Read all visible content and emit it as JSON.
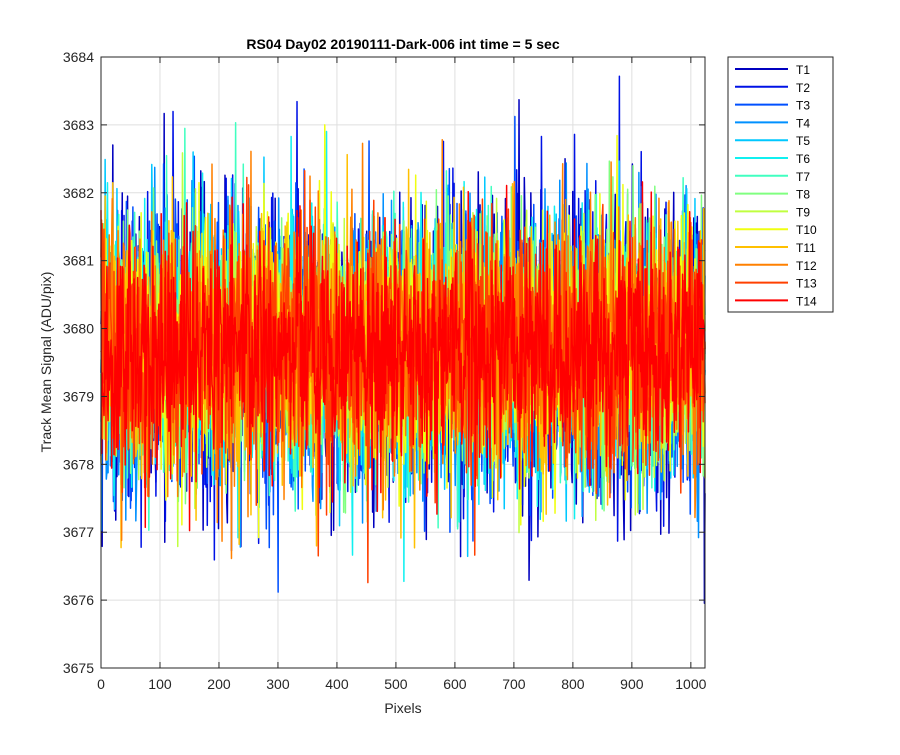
{
  "chart_data": {
    "type": "line",
    "title": "RS04 Day02 20190111-Dark-006 int time = 5 sec",
    "xlabel": "Pixels",
    "ylabel": "Track Mean Signal (ADU/pix)",
    "xlim": [
      0,
      1024
    ],
    "ylim": [
      3675,
      3684
    ],
    "xticks": [
      0,
      100,
      200,
      300,
      400,
      500,
      600,
      700,
      800,
      900,
      1000
    ],
    "yticks": [
      3675,
      3676,
      3677,
      3678,
      3679,
      3680,
      3681,
      3682,
      3683,
      3684
    ],
    "grid": true,
    "legend_position": "outside top-right",
    "n_points": 1024,
    "mean": 3679.7,
    "series": [
      {
        "name": "T1",
        "color": "#0000bf",
        "std": 1.15
      },
      {
        "name": "T2",
        "color": "#0012e6",
        "std": 1.1
      },
      {
        "name": "T3",
        "color": "#0050ff",
        "std": 1.05
      },
      {
        "name": "T4",
        "color": "#0090ff",
        "std": 1.0
      },
      {
        "name": "T5",
        "color": "#00c8ff",
        "std": 0.98
      },
      {
        "name": "T6",
        "color": "#10f0f0",
        "std": 0.95
      },
      {
        "name": "T7",
        "color": "#40ffc0",
        "std": 0.92
      },
      {
        "name": "T8",
        "color": "#80ff80",
        "std": 0.92
      },
      {
        "name": "T9",
        "color": "#c0ff40",
        "std": 0.92
      },
      {
        "name": "T10",
        "color": "#f0ff10",
        "std": 0.92
      },
      {
        "name": "T11",
        "color": "#ffc000",
        "std": 0.92
      },
      {
        "name": "T12",
        "color": "#ff8000",
        "std": 0.92
      },
      {
        "name": "T13",
        "color": "#ff4000",
        "std": 0.92
      },
      {
        "name": "T14",
        "color": "#ff0000",
        "std": 0.88
      }
    ]
  }
}
